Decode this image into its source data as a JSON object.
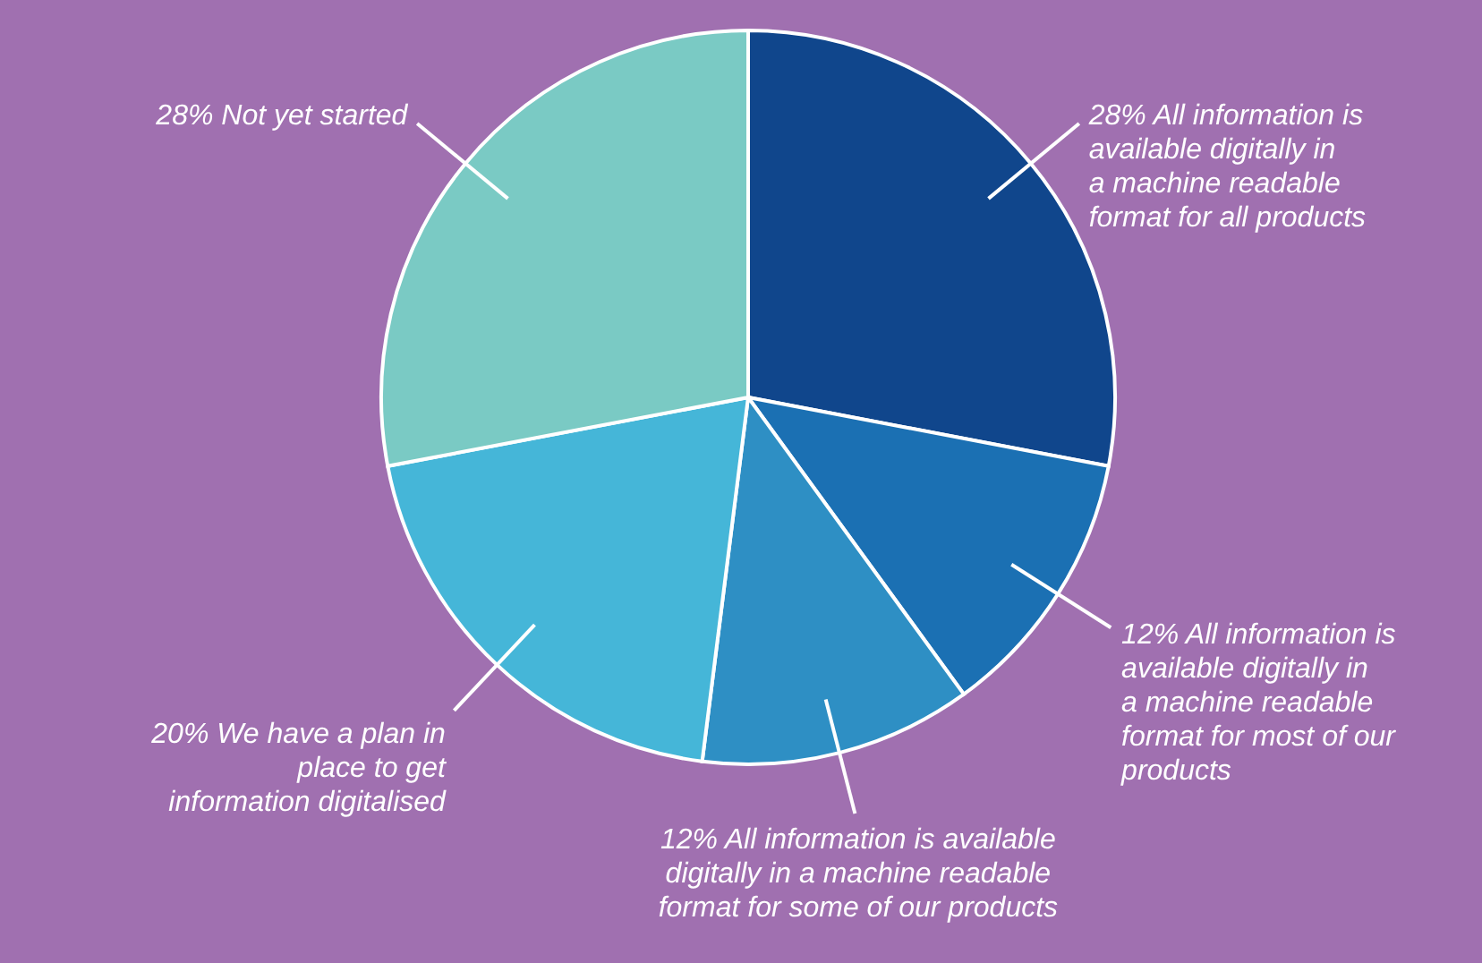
{
  "chart_data": {
    "type": "pie",
    "categories": [
      "All information is available digitally in a machine readable format for all products",
      "All information is available digitally in a machine readable format for most of our products",
      "All information is available digitally in a machine readable format for some of our products",
      "We have a plan in place to get information digitalised",
      "Not yet started"
    ],
    "values": [
      28,
      12,
      12,
      20,
      28
    ],
    "value_labels": [
      "28%",
      "12%",
      "12%",
      "20%",
      "28%"
    ],
    "colors": [
      "#10468c",
      "#1b70b3",
      "#2e8fc4",
      "#45b6d8",
      "#7acac4"
    ]
  }
}
